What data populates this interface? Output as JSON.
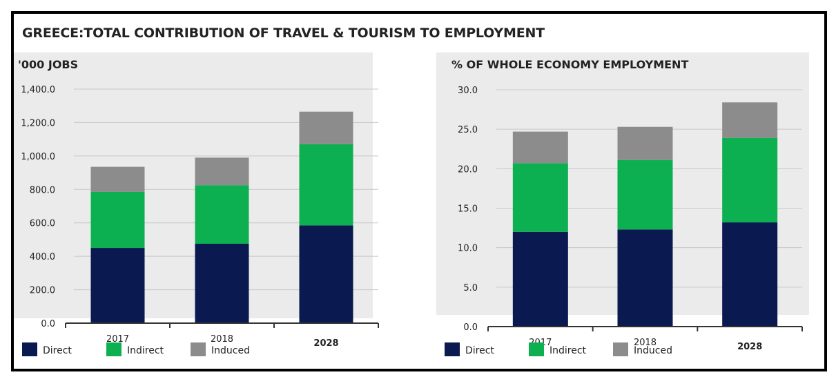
{
  "page_title": "GREECE:TOTAL CONTRIBUTION OF TRAVEL & TOURISM TO EMPLOYMENT",
  "colors": {
    "Direct": "#0a1a50",
    "Indirect": "#0cb050",
    "Induced": "#8c8c8c",
    "panel_bg": "#ebebeb",
    "axis": "#333333"
  },
  "chart_data": [
    {
      "type": "bar",
      "stacked": true,
      "title": "'000 JOBS",
      "categories": [
        "2017",
        "2018",
        "2028"
      ],
      "series": [
        {
          "name": "Direct",
          "values": [
            450,
            475,
            585
          ]
        },
        {
          "name": "Indirect",
          "values": [
            335,
            350,
            485
          ]
        },
        {
          "name": "Induced",
          "values": [
            150,
            165,
            195
          ]
        }
      ],
      "ylim": [
        0,
        1400
      ],
      "yticks": [
        "0.0",
        "200.0",
        "400.0",
        "600.0",
        "800.0",
        "1,000.0",
        "1,200.0",
        "1,400.0"
      ],
      "grid": true,
      "legend": "bottom-left"
    },
    {
      "type": "bar",
      "stacked": true,
      "title": "% OF WHOLE ECONOMY EMPLOYMENT",
      "categories": [
        "2017",
        "2018",
        "2028"
      ],
      "series": [
        {
          "name": "Direct",
          "values": [
            12.0,
            12.3,
            13.2
          ]
        },
        {
          "name": "Indirect",
          "values": [
            8.7,
            8.8,
            10.7
          ]
        },
        {
          "name": "Induced",
          "values": [
            4.0,
            4.2,
            4.5
          ]
        }
      ],
      "ylim": [
        0,
        30
      ],
      "yticks": [
        "0.0",
        "5.0",
        "10.0",
        "15.0",
        "20.0",
        "25.0",
        "30.0"
      ],
      "grid": true,
      "legend": "bottom-left"
    }
  ]
}
